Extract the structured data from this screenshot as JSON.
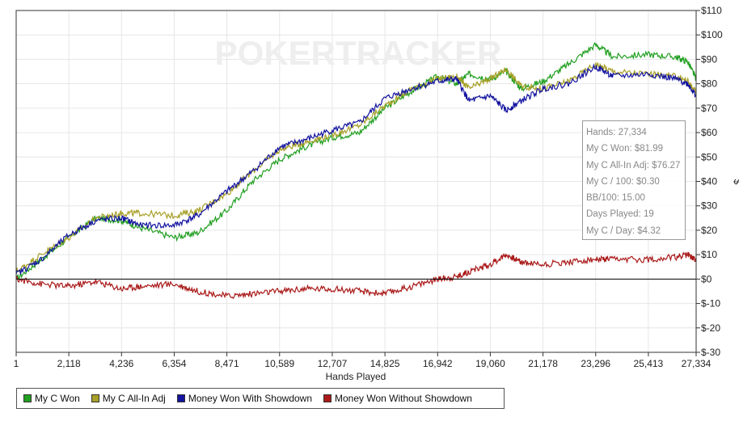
{
  "chart_data": {
    "type": "line",
    "title": "",
    "xlabel": "Hands Played",
    "ylabel": "$",
    "xlim": [
      1,
      27334
    ],
    "ylim": [
      -30,
      110
    ],
    "x_ticks": [
      1,
      2118,
      4236,
      6354,
      8471,
      10589,
      12707,
      14825,
      16942,
      19060,
      21178,
      23296,
      25413,
      27334
    ],
    "x_tick_labels": [
      "1",
      "2,118",
      "4,236",
      "6,354",
      "8,471",
      "10,589",
      "12,707",
      "14,825",
      "16,942",
      "19,060",
      "21,178",
      "23,296",
      "25,413",
      "27,334"
    ],
    "y_ticks": [
      -30,
      -20,
      -10,
      0,
      10,
      20,
      30,
      40,
      50,
      60,
      70,
      80,
      90,
      100,
      110
    ],
    "y_tick_labels": [
      "$-30",
      "$-20",
      "$-10",
      "$0",
      "$10",
      "$20",
      "$30",
      "$40",
      "$50",
      "$60",
      "$70",
      "$80",
      "$90",
      "$100",
      "$110"
    ],
    "grid": true,
    "legend_position": "bottom",
    "series": [
      {
        "name": "My C Won",
        "color": "#22a022",
        "x": [
          1,
          1000,
          2118,
          3200,
          4236,
          5000,
          6354,
          7300,
          8471,
          9500,
          10589,
          11600,
          12707,
          13800,
          14825,
          15900,
          16942,
          17700,
          18200,
          19060,
          19700,
          20300,
          21178,
          22200,
          23296,
          24000,
          25413,
          26500,
          27000,
          27334
        ],
        "y": [
          0,
          8,
          17,
          25,
          24,
          21,
          17,
          19,
          28,
          40,
          49,
          54,
          58,
          60,
          70,
          77,
          83,
          80,
          84,
          82,
          85,
          78,
          81,
          88,
          96,
          91,
          92,
          91,
          89,
          81.99
        ]
      },
      {
        "name": "My C All-In Adj",
        "color": "#a8a028",
        "x": [
          1,
          1000,
          2118,
          3200,
          4236,
          5000,
          6354,
          7300,
          8471,
          9500,
          10589,
          11600,
          12707,
          13800,
          14825,
          15900,
          16942,
          17700,
          18200,
          19060,
          19700,
          20300,
          21178,
          22200,
          23296,
          24000,
          25413,
          26500,
          27000,
          27334
        ],
        "y": [
          3,
          10,
          17,
          25,
          27,
          27,
          26,
          28,
          35,
          44,
          53,
          56,
          59,
          63,
          71,
          78,
          82,
          83,
          78,
          82,
          86,
          79,
          78,
          81,
          88,
          85,
          84,
          83,
          81,
          76.27
        ]
      },
      {
        "name": "Money Won With Showdown",
        "color": "#1414a0",
        "x": [
          1,
          1000,
          2118,
          3200,
          4236,
          5000,
          6354,
          7300,
          8471,
          9500,
          10589,
          11600,
          12707,
          13800,
          14825,
          15900,
          16942,
          17700,
          18200,
          19060,
          19700,
          20300,
          21178,
          22200,
          23296,
          24000,
          25413,
          26500,
          27000,
          27334
        ],
        "y": [
          2,
          8,
          18,
          24,
          25,
          22,
          22,
          26,
          36,
          44,
          54,
          57,
          61,
          64,
          74,
          78,
          81,
          82,
          73,
          75,
          69,
          73,
          78,
          80,
          87,
          83,
          84,
          82,
          80,
          75
        ]
      },
      {
        "name": "Money Won Without Showdown",
        "color": "#aa1a1a",
        "x": [
          1,
          1000,
          2118,
          3200,
          4236,
          5000,
          6354,
          7300,
          8471,
          9500,
          10589,
          11600,
          12707,
          13800,
          14825,
          15900,
          16942,
          17700,
          18200,
          19060,
          19700,
          20300,
          21178,
          22200,
          23296,
          24000,
          25413,
          26500,
          27000,
          27334
        ],
        "y": [
          0,
          -2,
          -3,
          -1,
          -4,
          -3,
          -2,
          -5,
          -7,
          -6,
          -5,
          -4,
          -4,
          -5,
          -6,
          -3,
          0,
          1,
          3,
          6,
          10,
          7,
          6,
          7,
          8,
          8,
          8,
          9,
          10,
          8
        ]
      }
    ],
    "watermark": "POKERTRACKER",
    "info_box": [
      "Hands: 27,334",
      "My C Won: $81.99",
      "My C All-In Adj: $76.27",
      "My C / 100: $0.30",
      "BB/100: 15.00",
      "Days Played: 19",
      "My C / Day: $4.32"
    ]
  }
}
